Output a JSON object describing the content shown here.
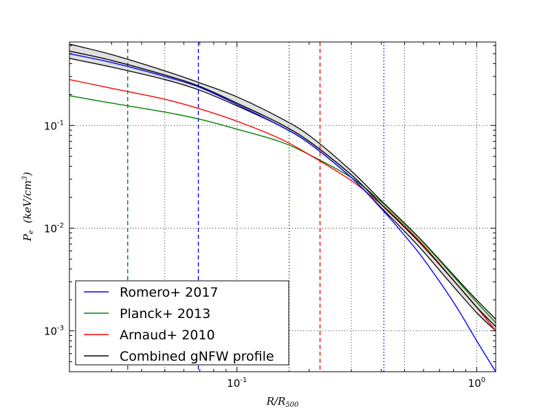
{
  "chart_data": {
    "type": "line",
    "title": "",
    "xlabel": "R/R500",
    "xlabel_main": "R/R",
    "xlabel_sub": "500",
    "ylabel": "Pe (keV/cm3)",
    "ylabel_main": "P",
    "ylabel_sub": "e",
    "ylabel_unit": "(keV/cm",
    "ylabel_unit_sup": "3",
    "ylabel_close": ")",
    "x_scale": "log",
    "y_scale": "log",
    "xlim": [
      0.02,
      1.2
    ],
    "ylim": [
      0.0004,
      0.65
    ],
    "grid": true,
    "legend_position": "lower-left",
    "x_ticks": [
      {
        "value": 0.1,
        "base": "10",
        "exp": "-1"
      },
      {
        "value": 1.0,
        "label": "10",
        "exp": "0"
      }
    ],
    "y_ticks": [
      {
        "value": 0.1,
        "base": "10",
        "exp": "-1"
      },
      {
        "value": 0.01,
        "base": "10",
        "exp": "-2"
      },
      {
        "value": 0.001,
        "base": "10",
        "exp": "-3"
      }
    ],
    "series": [
      {
        "name": "Romero+ 2017",
        "color": "#0000ff",
        "x": [
          0.02,
          0.03,
          0.05,
          0.07,
          0.1,
          0.15,
          0.2,
          0.3,
          0.4,
          0.5,
          0.6,
          0.8,
          1.0,
          1.2
        ],
        "y": [
          0.5,
          0.41,
          0.3,
          0.235,
          0.16,
          0.1,
          0.067,
          0.031,
          0.0155,
          0.0085,
          0.005,
          0.0019,
          0.0008,
          0.0004
        ]
      },
      {
        "name": "Planck+ 2013",
        "color": "#008000",
        "x": [
          0.02,
          0.03,
          0.05,
          0.07,
          0.1,
          0.15,
          0.2,
          0.3,
          0.4,
          0.5,
          0.6,
          0.8,
          1.0,
          1.2
        ],
        "y": [
          0.195,
          0.165,
          0.135,
          0.115,
          0.092,
          0.07,
          0.052,
          0.031,
          0.018,
          0.011,
          0.0072,
          0.0034,
          0.0019,
          0.0012
        ]
      },
      {
        "name": "Arnaud+ 2010",
        "color": "#ff0000",
        "x": [
          0.02,
          0.03,
          0.05,
          0.07,
          0.1,
          0.15,
          0.2,
          0.3,
          0.4,
          0.5,
          0.6,
          0.8,
          1.0,
          1.2
        ],
        "y": [
          0.28,
          0.23,
          0.18,
          0.145,
          0.11,
          0.075,
          0.052,
          0.029,
          0.017,
          0.0105,
          0.0068,
          0.0031,
          0.0017,
          0.001
        ]
      },
      {
        "name": "Combined gNFW profile",
        "color": "#000000",
        "x": [
          0.02,
          0.03,
          0.05,
          0.07,
          0.1,
          0.15,
          0.2,
          0.3,
          0.4,
          0.5,
          0.6,
          0.8,
          1.0,
          1.2
        ],
        "y": [
          0.53,
          0.43,
          0.31,
          0.24,
          0.165,
          0.105,
          0.07,
          0.033,
          0.017,
          0.0102,
          0.0066,
          0.0031,
          0.0017,
          0.0011
        ]
      }
    ],
    "band": {
      "color": "#d3d3d3",
      "x": [
        0.02,
        0.03,
        0.05,
        0.07,
        0.1,
        0.15,
        0.2,
        0.3,
        0.4,
        0.5,
        0.6,
        0.8,
        1.0,
        1.2
      ],
      "upper": [
        0.62,
        0.49,
        0.34,
        0.26,
        0.19,
        0.12,
        0.08,
        0.036,
        0.0185,
        0.0112,
        0.0073,
        0.0035,
        0.002,
        0.0013
      ],
      "lower": [
        0.45,
        0.37,
        0.28,
        0.22,
        0.155,
        0.1,
        0.067,
        0.031,
        0.0158,
        0.0093,
        0.0059,
        0.0027,
        0.0015,
        0.001
      ]
    },
    "vlines": [
      {
        "x": 0.035,
        "color": "#008000",
        "style": "dashed"
      },
      {
        "x": 0.069,
        "color": "#0000ff",
        "style": "dashed"
      },
      {
        "x": 0.165,
        "color": "#008000",
        "style": "dotted"
      },
      {
        "x": 0.222,
        "color": "#ff0000",
        "style": "dashed"
      },
      {
        "x": 0.41,
        "color": "#0000ff",
        "style": "dotted"
      }
    ]
  }
}
